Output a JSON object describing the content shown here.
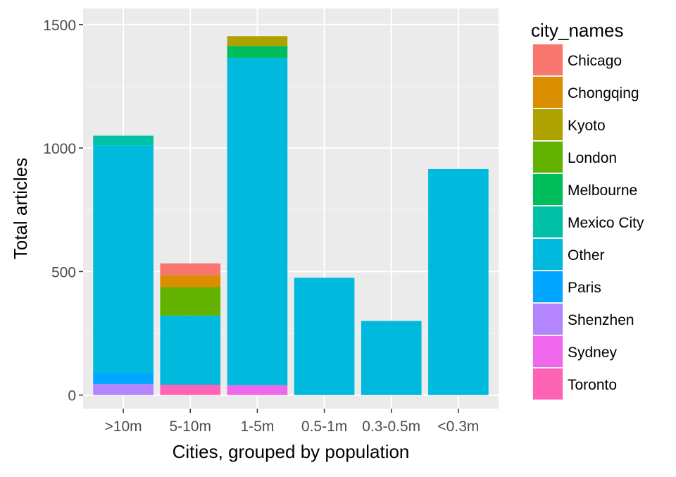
{
  "chart_data": {
    "type": "bar",
    "stacked": true,
    "title": "",
    "xlabel": "Cities, grouped by population",
    "ylabel": "Total articles",
    "categories": [
      ">10m",
      "5-10m",
      "1-5m",
      "0.5-1m",
      "0.3-0.5m",
      "<0.3m"
    ],
    "ylim": [
      -55,
      1565
    ],
    "yticks": [
      0,
      500,
      1000,
      1500
    ],
    "grid": true,
    "legend": {
      "title": "city_names",
      "position": "right",
      "entries": [
        "Chicago",
        "Chongqing",
        "Kyoto",
        "London",
        "Melbourne",
        "Mexico City",
        "Other",
        "Paris",
        "Shenzhen",
        "Sydney",
        "Toronto"
      ]
    },
    "series": [
      {
        "name": "Chicago",
        "color": "#F8766D",
        "values": [
          0,
          48,
          0,
          0,
          0,
          0
        ]
      },
      {
        "name": "Chongqing",
        "color": "#DB8E00",
        "values": [
          0,
          48,
          0,
          0,
          0,
          0
        ]
      },
      {
        "name": "Kyoto",
        "color": "#AEA200",
        "values": [
          0,
          0,
          40,
          0,
          0,
          0
        ]
      },
      {
        "name": "London",
        "color": "#64B200",
        "values": [
          0,
          115,
          0,
          0,
          0,
          0
        ]
      },
      {
        "name": "Melbourne",
        "color": "#00BD5C",
        "values": [
          0,
          0,
          48,
          0,
          0,
          0
        ]
      },
      {
        "name": "Mexico City",
        "color": "#00C1A7",
        "values": [
          0,
          0,
          0,
          0,
          0,
          0
        ]
      },
      {
        "name": "Other",
        "color": "#00BADE",
        "values": [
          920,
          280,
          1325,
          475,
          300,
          915
        ]
      },
      {
        "name": "Paris",
        "color": "#00A6FF",
        "values": [
          45,
          0,
          0,
          0,
          0,
          0
        ]
      },
      {
        "name": "Shenzhen",
        "color": "#B385FF",
        "values": [
          45,
          0,
          0,
          0,
          0,
          0
        ]
      },
      {
        "name": "Sydney",
        "color": "#EF67EB",
        "values": [
          0,
          0,
          40,
          0,
          0,
          0
        ]
      },
      {
        "name": "Toronto",
        "color": "#FF63B6",
        "values": [
          0,
          42,
          0,
          0,
          0,
          0
        ]
      }
    ],
    "stack_order_bottom_to_top": [
      "Shenzhen",
      "Sydney",
      "Toronto",
      "Paris",
      "Other",
      "Mexico City",
      "Melbourne",
      "London",
      "Kyoto",
      "Chongqing",
      "Chicago"
    ],
    "extra_segments": [
      {
        "category": ">10m",
        "name": "Mexico City",
        "value": 40
      }
    ],
    "colors": {
      "panel_background": "#EBEBEB",
      "grid_major": "#FFFFFF",
      "grid_minor": "#F5F5F5",
      "axis_text": "#4D4D4D",
      "title_text": "#000000"
    }
  }
}
